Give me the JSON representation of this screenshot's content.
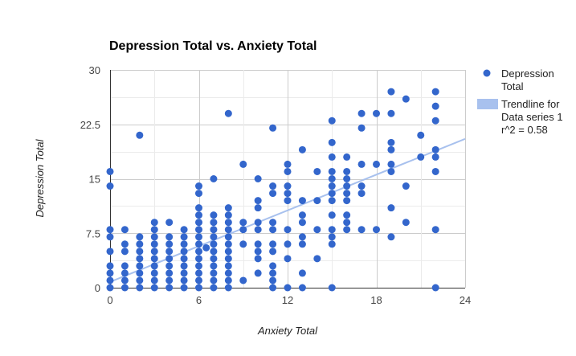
{
  "chart_data": {
    "type": "scatter",
    "title": "Depression Total vs. Anxiety Total",
    "xlabel": "Anxiety Total",
    "ylabel": "Depression Total",
    "xlim": [
      0,
      24
    ],
    "ylim": [
      0,
      30
    ],
    "x_ticks": [
      "0",
      "6",
      "12",
      "18",
      "24"
    ],
    "x_tick_values": [
      0,
      6,
      12,
      18,
      24
    ],
    "y_ticks": [
      "0",
      "7.5",
      "15",
      "22.5",
      "30"
    ],
    "y_tick_values": [
      0,
      7.5,
      15,
      22.5,
      30
    ],
    "grid": true,
    "legend_position": "right",
    "series": [
      {
        "name": "Depression Total",
        "color": "#3366cc",
        "points": [
          [
            0,
            0
          ],
          [
            0,
            1
          ],
          [
            0,
            2
          ],
          [
            0,
            3
          ],
          [
            0,
            5
          ],
          [
            0,
            7
          ],
          [
            0,
            8
          ],
          [
            0,
            14
          ],
          [
            0,
            16
          ],
          [
            1,
            0
          ],
          [
            1,
            1
          ],
          [
            1,
            2
          ],
          [
            1,
            3
          ],
          [
            1,
            5
          ],
          [
            1,
            6
          ],
          [
            1,
            8
          ],
          [
            2,
            0
          ],
          [
            2,
            1
          ],
          [
            2,
            2
          ],
          [
            2,
            3
          ],
          [
            2,
            4
          ],
          [
            2,
            5
          ],
          [
            2,
            6
          ],
          [
            2,
            7
          ],
          [
            2,
            21
          ],
          [
            3,
            0
          ],
          [
            3,
            1
          ],
          [
            3,
            2
          ],
          [
            3,
            3
          ],
          [
            3,
            4
          ],
          [
            3,
            5
          ],
          [
            3,
            6
          ],
          [
            3,
            7
          ],
          [
            3,
            8
          ],
          [
            3,
            9
          ],
          [
            4,
            0
          ],
          [
            4,
            1
          ],
          [
            4,
            2
          ],
          [
            4,
            3
          ],
          [
            4,
            4
          ],
          [
            4,
            5
          ],
          [
            4,
            6
          ],
          [
            4,
            7
          ],
          [
            4,
            9
          ],
          [
            5,
            0
          ],
          [
            5,
            1
          ],
          [
            5,
            2
          ],
          [
            5,
            3
          ],
          [
            5,
            4
          ],
          [
            5,
            5
          ],
          [
            5,
            6
          ],
          [
            5,
            7
          ],
          [
            5,
            8
          ],
          [
            6,
            0
          ],
          [
            6,
            1
          ],
          [
            6,
            2
          ],
          [
            6,
            3
          ],
          [
            6,
            4
          ],
          [
            6,
            5
          ],
          [
            6,
            6
          ],
          [
            6,
            7
          ],
          [
            6,
            8
          ],
          [
            6,
            9
          ],
          [
            6,
            10
          ],
          [
            6,
            11
          ],
          [
            6,
            13
          ],
          [
            6,
            14
          ],
          [
            6.5,
            5.5
          ],
          [
            7,
            0
          ],
          [
            7,
            1
          ],
          [
            7,
            2
          ],
          [
            7,
            3
          ],
          [
            7,
            4
          ],
          [
            7,
            5
          ],
          [
            7,
            6
          ],
          [
            7,
            7
          ],
          [
            7,
            8
          ],
          [
            7,
            9
          ],
          [
            7,
            10
          ],
          [
            7,
            15
          ],
          [
            8,
            0
          ],
          [
            8,
            1
          ],
          [
            8,
            2
          ],
          [
            8,
            3
          ],
          [
            8,
            4
          ],
          [
            8,
            5
          ],
          [
            8,
            6
          ],
          [
            8,
            7
          ],
          [
            8,
            8
          ],
          [
            8,
            9
          ],
          [
            8,
            10
          ],
          [
            8,
            11
          ],
          [
            8,
            24
          ],
          [
            9,
            1
          ],
          [
            9,
            6
          ],
          [
            9,
            8
          ],
          [
            9,
            9
          ],
          [
            9,
            17
          ],
          [
            10,
            2
          ],
          [
            10,
            4
          ],
          [
            10,
            5
          ],
          [
            10,
            6
          ],
          [
            10,
            8
          ],
          [
            10,
            9
          ],
          [
            10,
            11
          ],
          [
            10,
            12
          ],
          [
            10,
            15
          ],
          [
            11,
            0
          ],
          [
            11,
            1
          ],
          [
            11,
            2
          ],
          [
            11,
            3
          ],
          [
            11,
            5
          ],
          [
            11,
            6
          ],
          [
            11,
            8
          ],
          [
            11,
            9
          ],
          [
            11,
            13
          ],
          [
            11,
            14
          ],
          [
            11,
            22
          ],
          [
            12,
            0
          ],
          [
            12,
            4
          ],
          [
            12,
            6
          ],
          [
            12,
            8
          ],
          [
            12,
            12
          ],
          [
            12,
            13
          ],
          [
            12,
            14
          ],
          [
            12,
            16
          ],
          [
            12,
            17
          ],
          [
            13,
            0
          ],
          [
            13,
            2
          ],
          [
            13,
            6
          ],
          [
            13,
            7
          ],
          [
            13,
            9
          ],
          [
            13,
            10
          ],
          [
            13,
            12
          ],
          [
            13,
            19
          ],
          [
            14,
            4
          ],
          [
            14,
            8
          ],
          [
            14,
            12
          ],
          [
            14,
            16
          ],
          [
            15,
            0
          ],
          [
            15,
            6
          ],
          [
            15,
            7
          ],
          [
            15,
            8
          ],
          [
            15,
            10
          ],
          [
            15,
            12
          ],
          [
            15,
            13
          ],
          [
            15,
            14
          ],
          [
            15,
            15
          ],
          [
            15,
            16
          ],
          [
            15,
            18
          ],
          [
            15,
            20
          ],
          [
            15,
            23
          ],
          [
            16,
            8
          ],
          [
            16,
            9
          ],
          [
            16,
            10
          ],
          [
            16,
            12
          ],
          [
            16,
            13
          ],
          [
            16,
            14
          ],
          [
            16,
            15
          ],
          [
            16,
            16
          ],
          [
            16,
            18
          ],
          [
            17,
            8
          ],
          [
            17,
            13
          ],
          [
            17,
            14
          ],
          [
            17,
            17
          ],
          [
            17,
            22
          ],
          [
            17,
            24
          ],
          [
            18,
            8
          ],
          [
            18,
            17
          ],
          [
            18,
            24
          ],
          [
            19,
            7
          ],
          [
            19,
            11
          ],
          [
            19,
            16
          ],
          [
            19,
            17
          ],
          [
            19,
            19
          ],
          [
            19,
            20
          ],
          [
            19,
            24
          ],
          [
            19,
            27
          ],
          [
            20,
            9
          ],
          [
            20,
            14
          ],
          [
            20,
            26
          ],
          [
            21,
            18
          ],
          [
            21,
            21
          ],
          [
            22,
            0
          ],
          [
            22,
            8
          ],
          [
            22,
            16
          ],
          [
            22,
            18
          ],
          [
            22,
            19
          ],
          [
            22,
            23
          ],
          [
            22,
            25
          ],
          [
            22,
            27
          ]
        ]
      }
    ],
    "trendline": {
      "name": "Trendline for Data series 1",
      "r2_label": "r^2 = 0.58",
      "color": "#a8c1ee",
      "x_start": 0,
      "y_start": 0.8,
      "x_end": 24,
      "y_end": 20.5
    }
  }
}
